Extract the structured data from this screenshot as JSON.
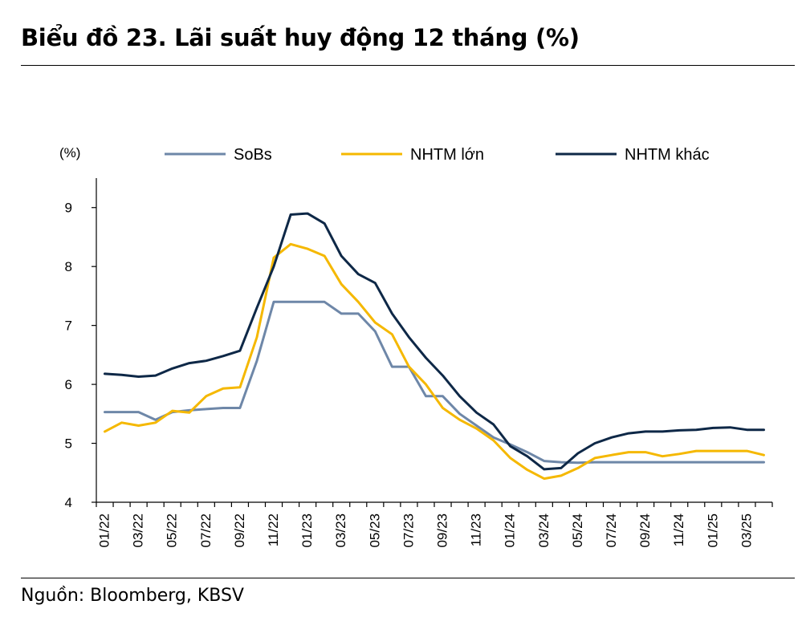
{
  "title": "Biểu đồ 23. Lãi suất huy động 12 tháng (%)",
  "source": "Nguồn: Bloomberg, KBSV",
  "chart_data": {
    "type": "line",
    "title": "Biểu đồ 23. Lãi suất huy động 12 tháng (%)",
    "ylabel": "(%)",
    "xlabel": "",
    "ylim": [
      4,
      9.5
    ],
    "yticks": [
      4,
      5,
      6,
      7,
      8,
      9
    ],
    "grid": false,
    "legend": "top",
    "x": [
      "01/22",
      "02/22",
      "03/22",
      "04/22",
      "05/22",
      "06/22",
      "07/22",
      "08/22",
      "09/22",
      "10/22",
      "11/22",
      "12/22",
      "01/23",
      "02/23",
      "03/23",
      "04/23",
      "05/23",
      "06/23",
      "07/23",
      "08/23",
      "09/23",
      "10/23",
      "11/23",
      "12/23",
      "01/24",
      "02/24",
      "03/24",
      "04/24",
      "05/24",
      "06/24",
      "07/24",
      "08/24",
      "09/24",
      "10/24",
      "11/24",
      "12/24",
      "01/25",
      "02/25",
      "03/25",
      "04/25"
    ],
    "xtick_labels": [
      "01/22",
      "03/22",
      "05/22",
      "07/22",
      "09/22",
      "11/22",
      "01/23",
      "03/23",
      "05/23",
      "07/23",
      "09/23",
      "11/23",
      "01/24",
      "03/24",
      "05/24",
      "07/24",
      "09/24",
      "11/24",
      "01/25",
      "03/25"
    ],
    "series": [
      {
        "name": "SoBs",
        "color": "#6E87A8",
        "values": [
          5.53,
          5.53,
          5.53,
          5.4,
          5.53,
          5.56,
          5.58,
          5.6,
          5.6,
          6.4,
          7.4,
          7.4,
          7.4,
          7.4,
          7.2,
          7.2,
          6.9,
          6.3,
          6.3,
          5.8,
          5.8,
          5.5,
          5.3,
          5.1,
          4.98,
          4.85,
          4.7,
          4.68,
          4.67,
          4.68,
          4.68,
          4.68,
          4.68,
          4.68,
          4.68,
          4.68,
          4.68,
          4.68,
          4.68,
          4.68
        ]
      },
      {
        "name": "NHTM lớn",
        "color": "#F5B800",
        "values": [
          5.2,
          5.35,
          5.3,
          5.35,
          5.55,
          5.52,
          5.8,
          5.93,
          5.95,
          6.8,
          8.15,
          8.38,
          8.3,
          8.18,
          7.7,
          7.4,
          7.05,
          6.85,
          6.3,
          6.0,
          5.6,
          5.4,
          5.25,
          5.05,
          4.75,
          4.55,
          4.4,
          4.45,
          4.58,
          4.75,
          4.8,
          4.85,
          4.85,
          4.78,
          4.82,
          4.87,
          4.87,
          4.87,
          4.87,
          4.8
        ]
      },
      {
        "name": "NHTM khác",
        "color": "#0E2847",
        "values": [
          6.18,
          6.16,
          6.13,
          6.15,
          6.27,
          6.36,
          6.4,
          6.48,
          6.57,
          7.3,
          8.0,
          8.88,
          8.9,
          8.73,
          8.18,
          7.87,
          7.72,
          7.2,
          6.8,
          6.45,
          6.15,
          5.8,
          5.52,
          5.32,
          4.95,
          4.78,
          4.56,
          4.58,
          4.83,
          5.0,
          5.1,
          5.17,
          5.2,
          5.2,
          5.22,
          5.23,
          5.26,
          5.27,
          5.23,
          5.23
        ]
      }
    ]
  }
}
